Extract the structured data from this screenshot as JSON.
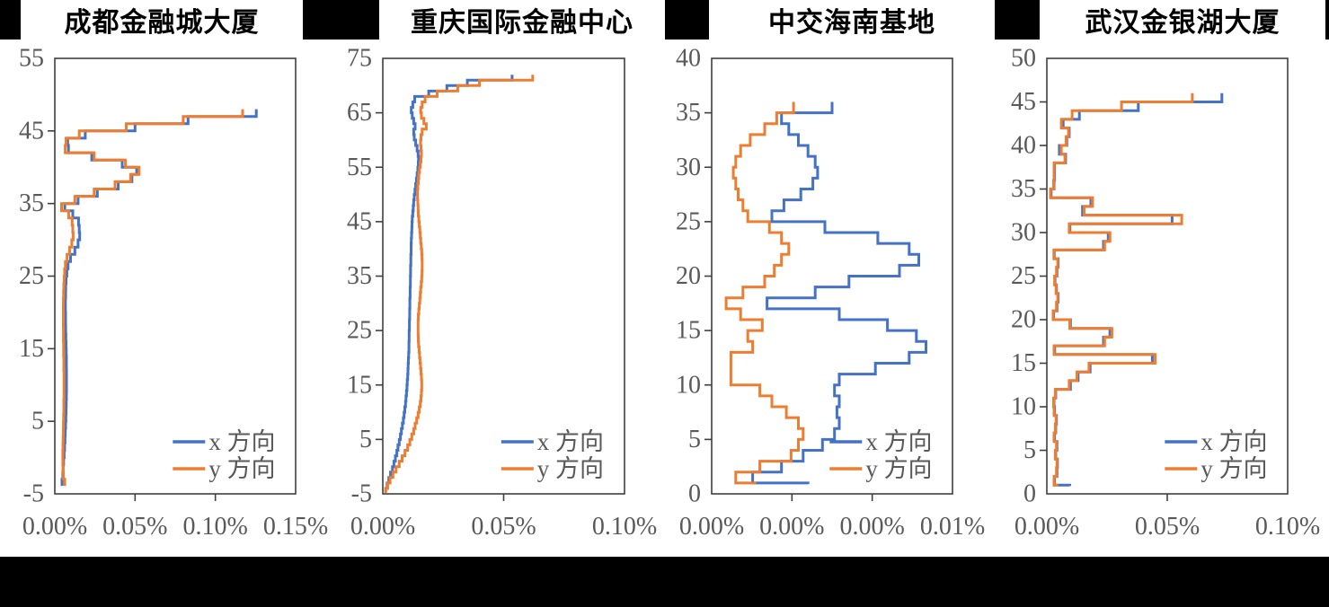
{
  "page": {
    "background": "#000000",
    "panel_background": "#ffffff"
  },
  "colors": {
    "series_x": "#4472C4",
    "series_y": "#ED7D31",
    "axis_text": "#595959",
    "axis_line": "#3f3f3f",
    "title_text": "#000000"
  },
  "legend": {
    "position": "lower-right",
    "entries": [
      "x 方向",
      "y 方向"
    ]
  },
  "chart_data": [
    {
      "type": "line",
      "title": "成都金融城大厦",
      "xlabel": "",
      "ylabel": "",
      "grid": false,
      "x_axis": {
        "min": 0,
        "max": 0.15,
        "tick_labels": [
          "0.00%",
          "0.05%",
          "0.10%",
          "0.15%"
        ],
        "unit": "% drift"
      },
      "y_axis": {
        "min": -5,
        "max": 55,
        "step": 10,
        "tick_labels": [
          "-5",
          "5",
          "15",
          "25",
          "35",
          "45",
          "55"
        ],
        "meaning": "floor"
      },
      "floor_start": -3,
      "floor_base": -3.9,
      "series": [
        {
          "name": "x 方向",
          "color": "#4472C4",
          "values": [
            0.0045,
            0.005,
            0.0052,
            0.0055,
            0.0058,
            0.0061,
            0.0063,
            0.0065,
            0.0067,
            0.0069,
            0.007,
            0.0071,
            0.0072,
            0.0073,
            0.0073,
            0.0073,
            0.0072,
            0.0072,
            0.0071,
            0.007,
            0.0069,
            0.0068,
            0.0067,
            0.0067,
            0.0066,
            0.0066,
            0.0067,
            0.0068,
            0.007,
            0.0075,
            0.0082,
            0.0098,
            0.0125,
            0.0145,
            0.0155,
            0.0152,
            0.0148,
            0.0112,
            0.0062,
            0.0145,
            0.0265,
            0.0395,
            0.048,
            0.051,
            0.042,
            0.023,
            0.0085,
            0.008,
            0.019,
            0.05,
            0.083,
            0.1255
          ]
        },
        {
          "name": "y 方向",
          "color": "#ED7D31",
          "values": [
            0.0062,
            0.0054,
            0.0051,
            0.005,
            0.005,
            0.0051,
            0.0052,
            0.0053,
            0.0054,
            0.0055,
            0.0056,
            0.0056,
            0.0057,
            0.0057,
            0.0057,
            0.0057,
            0.0056,
            0.0056,
            0.0055,
            0.0055,
            0.0054,
            0.0054,
            0.0053,
            0.0053,
            0.0053,
            0.0054,
            0.0055,
            0.0056,
            0.0058,
            0.0061,
            0.0066,
            0.0076,
            0.0092,
            0.0106,
            0.0114,
            0.0112,
            0.0108,
            0.0086,
            0.0042,
            0.0125,
            0.0245,
            0.0375,
            0.0472,
            0.0525,
            0.044,
            0.0245,
            0.0065,
            0.007,
            0.0152,
            0.0445,
            0.08,
            0.117
          ]
        }
      ]
    },
    {
      "type": "line",
      "title": "重庆国际金融中心",
      "xlabel": "",
      "ylabel": "",
      "grid": false,
      "x_axis": {
        "min": 0,
        "max": 0.1,
        "tick_labels": [
          "0.00%",
          "0.05%",
          "0.10%"
        ],
        "unit": "% drift"
      },
      "y_axis": {
        "min": -5,
        "max": 75,
        "step": 10,
        "tick_labels": [
          "-5",
          "5",
          "15",
          "25",
          "35",
          "45",
          "55",
          "65",
          "75"
        ],
        "meaning": "floor"
      },
      "floor_start": -4,
      "floor_base": -4.8,
      "series": [
        {
          "name": "x 方向",
          "color": "#4472C4",
          "values": [
            0.0012,
            0.0018,
            0.0025,
            0.0032,
            0.004,
            0.0046,
            0.0052,
            0.0058,
            0.0063,
            0.0068,
            0.0073,
            0.0077,
            0.0081,
            0.0085,
            0.0088,
            0.0091,
            0.0094,
            0.0096,
            0.0098,
            0.01,
            0.0101,
            0.0103,
            0.0104,
            0.0105,
            0.0106,
            0.0107,
            0.0108,
            0.0108,
            0.0109,
            0.0109,
            0.011,
            0.011,
            0.0111,
            0.0111,
            0.0112,
            0.0112,
            0.0113,
            0.0113,
            0.0114,
            0.0114,
            0.0115,
            0.0115,
            0.0116,
            0.0116,
            0.0117,
            0.0117,
            0.0118,
            0.0119,
            0.012,
            0.0121,
            0.0122,
            0.0124,
            0.0126,
            0.0128,
            0.013,
            0.0133,
            0.0136,
            0.0139,
            0.0142,
            0.0145,
            0.0147,
            0.0148,
            0.0146,
            0.0142,
            0.0136,
            0.013,
            0.0128,
            0.0134,
            0.0128,
            0.0122,
            0.0118,
            0.0124,
            0.0132,
            0.019,
            0.0265,
            0.035,
            0.0535
          ]
        },
        {
          "name": "y 方向",
          "color": "#ED7D31",
          "values": [
            0.0012,
            0.002,
            0.003,
            0.0042,
            0.0055,
            0.0068,
            0.008,
            0.0092,
            0.0103,
            0.0112,
            0.012,
            0.0128,
            0.0134,
            0.014,
            0.0146,
            0.0151,
            0.0155,
            0.0158,
            0.016,
            0.0161,
            0.0161,
            0.016,
            0.0158,
            0.0156,
            0.0154,
            0.0152,
            0.015,
            0.0148,
            0.0147,
            0.0146,
            0.0146,
            0.0146,
            0.0147,
            0.0149,
            0.0151,
            0.0153,
            0.0155,
            0.0157,
            0.0159,
            0.0161,
            0.0162,
            0.0163,
            0.0163,
            0.0162,
            0.0161,
            0.0159,
            0.0157,
            0.0155,
            0.0153,
            0.0151,
            0.0149,
            0.0147,
            0.0146,
            0.0145,
            0.0144,
            0.0144,
            0.0145,
            0.0147,
            0.0149,
            0.0152,
            0.0155,
            0.0158,
            0.016,
            0.0158,
            0.0156,
            0.0158,
            0.0163,
            0.018,
            0.017,
            0.016,
            0.0157,
            0.0163,
            0.0175,
            0.0225,
            0.031,
            0.04,
            0.062
          ]
        }
      ]
    },
    {
      "type": "line",
      "title": "中交海南基地",
      "xlabel": "",
      "ylabel": "",
      "grid": false,
      "x_axis": {
        "min": 0,
        "max": 0.01,
        "tick_labels": [
          "0.00%",
          "0.00%",
          "0.00%",
          "0.01%"
        ],
        "unit": "% drift"
      },
      "y_axis": {
        "min": 0,
        "max": 40,
        "step": 5,
        "tick_labels": [
          "0",
          "5",
          "10",
          "15",
          "20",
          "25",
          "30",
          "35",
          "40"
        ],
        "meaning": "floor"
      },
      "floor_start": 1,
      "floor_base": 0.9,
      "series": [
        {
          "name": "x 方向",
          "color": "#4472C4",
          "values": [
            0.004,
            0.0017,
            0.0029,
            0.0038,
            0.0046,
            0.0051,
            0.0053,
            0.0052,
            0.0053,
            0.0051,
            0.0053,
            0.0068,
            0.0082,
            0.0089,
            0.0085,
            0.0073,
            0.0053,
            0.0023,
            0.0043,
            0.0057,
            0.0078,
            0.0086,
            0.0082,
            0.0069,
            0.0047,
            0.0025,
            0.003,
            0.0037,
            0.0042,
            0.0044,
            0.0043,
            0.004,
            0.0036,
            0.0032,
            0.0029,
            0.005
          ]
        },
        {
          "name": "y 方向",
          "color": "#ED7D31",
          "values": [
            0.0018,
            0.001,
            0.002,
            0.0033,
            0.0036,
            0.0038,
            0.0036,
            0.0031,
            0.0025,
            0.002,
            0.0008,
            0.0008,
            0.0008,
            0.0017,
            0.0015,
            0.0021,
            0.0012,
            0.0006,
            0.0013,
            0.0022,
            0.0026,
            0.0029,
            0.0032,
            0.0029,
            0.0024,
            0.0015,
            0.0013,
            0.0011,
            0.001,
            0.0009,
            0.001,
            0.0012,
            0.0016,
            0.0022,
            0.0027,
            0.0034
          ]
        }
      ]
    },
    {
      "type": "line",
      "title": "武汉金银湖大厦",
      "xlabel": "",
      "ylabel": "",
      "grid": false,
      "x_axis": {
        "min": 0,
        "max": 0.1,
        "tick_labels": [
          "0.00%",
          "0.05%",
          "0.10%"
        ],
        "unit": "% drift"
      },
      "y_axis": {
        "min": 0,
        "max": 50,
        "step": 5,
        "tick_labels": [
          "0",
          "5",
          "10",
          "15",
          "20",
          "25",
          "30",
          "35",
          "40",
          "45",
          "50"
        ],
        "meaning": "floor"
      },
      "floor_start": 1,
      "floor_base": 0.9,
      "series": [
        {
          "name": "x 方向",
          "color": "#4472C4",
          "values": [
            0.0095,
            0.0032,
            0.0042,
            0.0044,
            0.0037,
            0.0042,
            0.0032,
            0.0037,
            0.004,
            0.0032,
            0.003,
            0.0037,
            0.0098,
            0.013,
            0.018,
            0.0438,
            0.0033,
            0.0235,
            0.0262,
            0.0098,
            0.0028,
            0.0042,
            0.0047,
            0.004,
            0.0034,
            0.0042,
            0.0047,
            0.0031,
            0.0235,
            0.0255,
            0.0096,
            0.052,
            0.0148,
            0.0183,
            0.0018,
            0.003,
            0.0032,
            0.0032,
            0.0078,
            0.0052,
            0.0083,
            0.0093,
            0.0068,
            0.0135,
            0.038,
            0.0727
          ]
        },
        {
          "name": "y 方向",
          "color": "#ED7D31",
          "values": [
            0.0042,
            0.003,
            0.004,
            0.0042,
            0.0035,
            0.004,
            0.003,
            0.0035,
            0.0038,
            0.003,
            0.0028,
            0.0035,
            0.0093,
            0.0125,
            0.0175,
            0.045,
            0.003,
            0.024,
            0.027,
            0.0095,
            0.0026,
            0.004,
            0.0045,
            0.0038,
            0.0032,
            0.004,
            0.0045,
            0.0029,
            0.024,
            0.0262,
            0.0093,
            0.056,
            0.0155,
            0.019,
            0.0015,
            0.0028,
            0.003,
            0.003,
            0.0075,
            0.006,
            0.008,
            0.009,
            0.006,
            0.0105,
            0.031,
            0.0604
          ]
        }
      ]
    }
  ]
}
